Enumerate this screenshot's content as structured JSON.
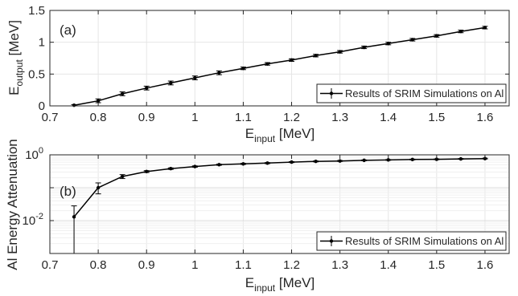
{
  "chart_data": [
    {
      "type": "line",
      "panel_label": "(a)",
      "xlabel": {
        "main": "E",
        "sub": "input",
        "unit": " [MeV]"
      },
      "ylabel": {
        "main": "E",
        "sub": "output",
        "unit": " [MeV]"
      },
      "xlim": [
        0.7,
        1.65
      ],
      "ylim": [
        0,
        1.5
      ],
      "xticks": [
        "0.7",
        "0.8",
        "0.9",
        "1",
        "1.1",
        "1.2",
        "1.3",
        "1.4",
        "1.5",
        "1.6"
      ],
      "yticks": [
        "0",
        "0.5",
        "1",
        "1.5"
      ],
      "scale": "linear",
      "grid": true,
      "legend_position": "bottom-right",
      "series": [
        {
          "name": "Results of SRIM Simulations on Al",
          "x": [
            0.75,
            0.8,
            0.85,
            0.9,
            0.95,
            1.0,
            1.05,
            1.1,
            1.15,
            1.2,
            1.25,
            1.3,
            1.35,
            1.4,
            1.45,
            1.5,
            1.55,
            1.6
          ],
          "y": [
            0.01,
            0.08,
            0.19,
            0.28,
            0.36,
            0.44,
            0.52,
            0.59,
            0.66,
            0.72,
            0.79,
            0.85,
            0.92,
            0.98,
            1.04,
            1.1,
            1.17,
            1.23
          ],
          "err": [
            0.01,
            0.03,
            0.03,
            0.03,
            0.03,
            0.03,
            0.03,
            0.02,
            0.02,
            0.02,
            0.02,
            0.02,
            0.02,
            0.02,
            0.02,
            0.02,
            0.02,
            0.02
          ]
        }
      ]
    },
    {
      "type": "line",
      "panel_label": "(b)",
      "xlabel": {
        "main": "E",
        "sub": "input",
        "unit": " [MeV]"
      },
      "ylabel": {
        "main": "Al Energy Attenuation",
        "sub": "",
        "unit": ""
      },
      "xlim": [
        0.7,
        1.65
      ],
      "ylim": [
        0.001,
        1
      ],
      "xticks": [
        "0.7",
        "0.8",
        "0.9",
        "1",
        "1.1",
        "1.2",
        "1.3",
        "1.4",
        "1.5",
        "1.6"
      ],
      "yticks": [
        {
          "value": 0.01,
          "base": "10",
          "exp": "-2"
        },
        {
          "value": 1,
          "base": "10",
          "exp": "0"
        }
      ],
      "scale": "log",
      "grid": true,
      "legend_position": "bottom-right",
      "series": [
        {
          "name": "Results of SRIM Simulations on Al",
          "x": [
            0.75,
            0.8,
            0.85,
            0.9,
            0.95,
            1.0,
            1.05,
            1.1,
            1.15,
            1.2,
            1.25,
            1.3,
            1.35,
            1.4,
            1.45,
            1.5,
            1.55,
            1.6
          ],
          "y": [
            0.013,
            0.1,
            0.22,
            0.31,
            0.38,
            0.44,
            0.5,
            0.53,
            0.56,
            0.6,
            0.63,
            0.65,
            0.68,
            0.7,
            0.72,
            0.73,
            0.75,
            0.77
          ],
          "lo": [
            0.001,
            0.065,
            0.19,
            0.29,
            0.36,
            0.42,
            0.48,
            0.51,
            0.54,
            0.58,
            0.61,
            0.63,
            0.66,
            0.68,
            0.7,
            0.71,
            0.73,
            0.75
          ],
          "hi": [
            0.028,
            0.14,
            0.25,
            0.33,
            0.4,
            0.46,
            0.52,
            0.55,
            0.58,
            0.62,
            0.65,
            0.67,
            0.7,
            0.72,
            0.74,
            0.75,
            0.77,
            0.79
          ]
        }
      ]
    }
  ]
}
